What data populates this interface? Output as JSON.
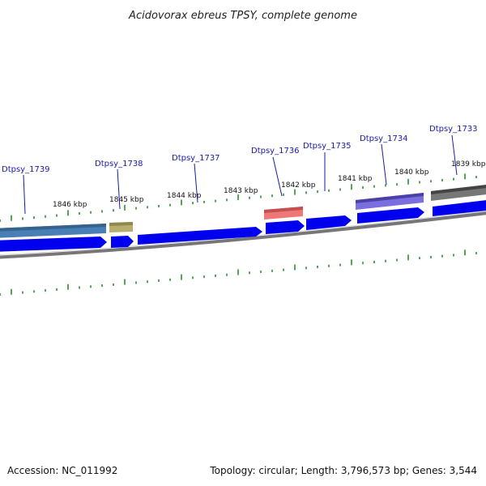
{
  "header": {
    "title": "Acidovorax ebreus TPSY, complete genome"
  },
  "footer": {
    "accession": "Accession: NC_011992",
    "summary": "Topology: circular; Length: 3,796,573 bp; Genes: 3,544"
  },
  "kbp_labels": [
    "1846 kbp",
    "1845 kbp",
    "1844 kbp",
    "1843 kbp",
    "1842 kbp",
    "1841 kbp",
    "1840 kbp",
    "1839 kbp"
  ],
  "gene_labels": [
    "Dtpsy_1739",
    "Dtpsy_1738",
    "Dtpsy_1737",
    "Dtpsy_1736",
    "Dtpsy_1735",
    "Dtpsy_1734",
    "Dtpsy_1733"
  ],
  "colors": {
    "cds": "#0000ee",
    "backbone": "#808080",
    "tick": "#1a8a1a",
    "label": "#1a1aa8",
    "feature_1739": "#4a7fb5",
    "feature_1738": "#b5ae6e",
    "feature_1736": "#ee7777",
    "feature_1734": "#6a5acd",
    "feature_1733": "#666666"
  }
}
